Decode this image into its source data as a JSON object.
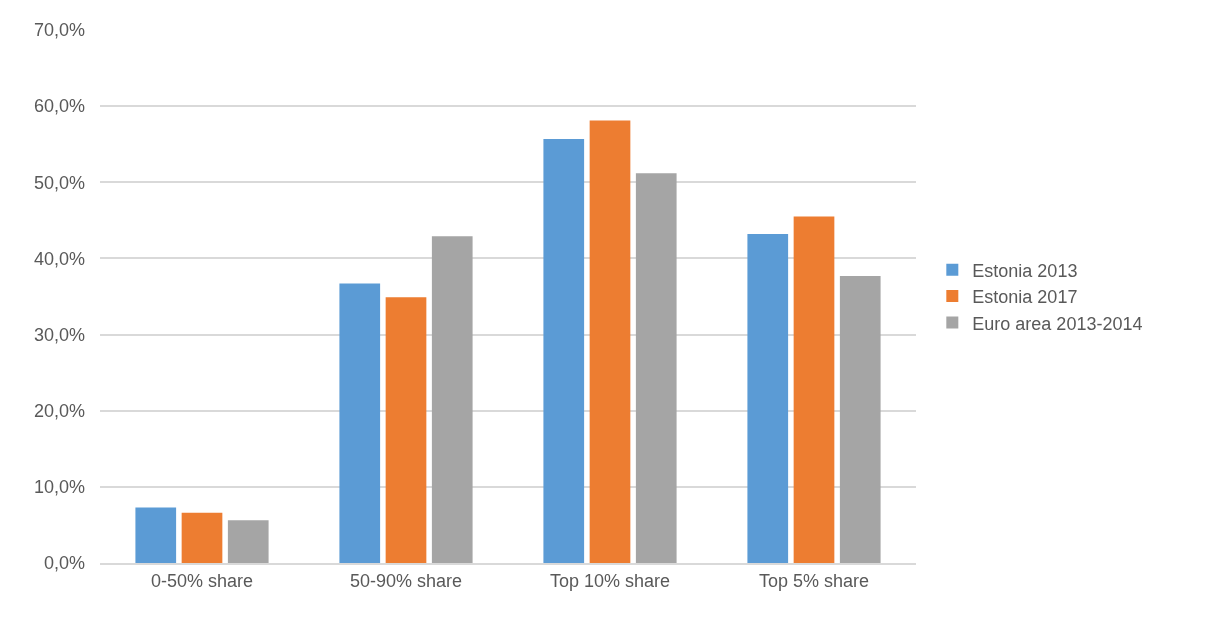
{
  "chart_data": {
    "type": "bar",
    "categories": [
      "0-50% share",
      "50-90% share",
      "Top 10% share",
      "Top 5% share"
    ],
    "series": [
      {
        "name": "Estonia 2013",
        "color": "#5b9bd5",
        "values": [
          7.3,
          36.7,
          55.7,
          43.2
        ]
      },
      {
        "name": "Estonia 2017",
        "color": "#ed7d31",
        "values": [
          6.6,
          34.9,
          58.1,
          45.5
        ]
      },
      {
        "name": "Euro area 2013-2014",
        "color": "#a5a5a5",
        "values": [
          5.6,
          42.9,
          51.2,
          37.7
        ]
      }
    ],
    "ylim": [
      0,
      70
    ],
    "yticks": [
      {
        "value": 0,
        "label": "0,0%"
      },
      {
        "value": 10,
        "label": "10,0%"
      },
      {
        "value": 20,
        "label": "20,0%"
      },
      {
        "value": 30,
        "label": "30,0%"
      },
      {
        "value": 40,
        "label": "40,0%"
      },
      {
        "value": 50,
        "label": "50,0%"
      },
      {
        "value": 60,
        "label": "60,0%"
      },
      {
        "value": 70,
        "label": "70,0%"
      }
    ],
    "grid": "y",
    "legend": "right"
  }
}
